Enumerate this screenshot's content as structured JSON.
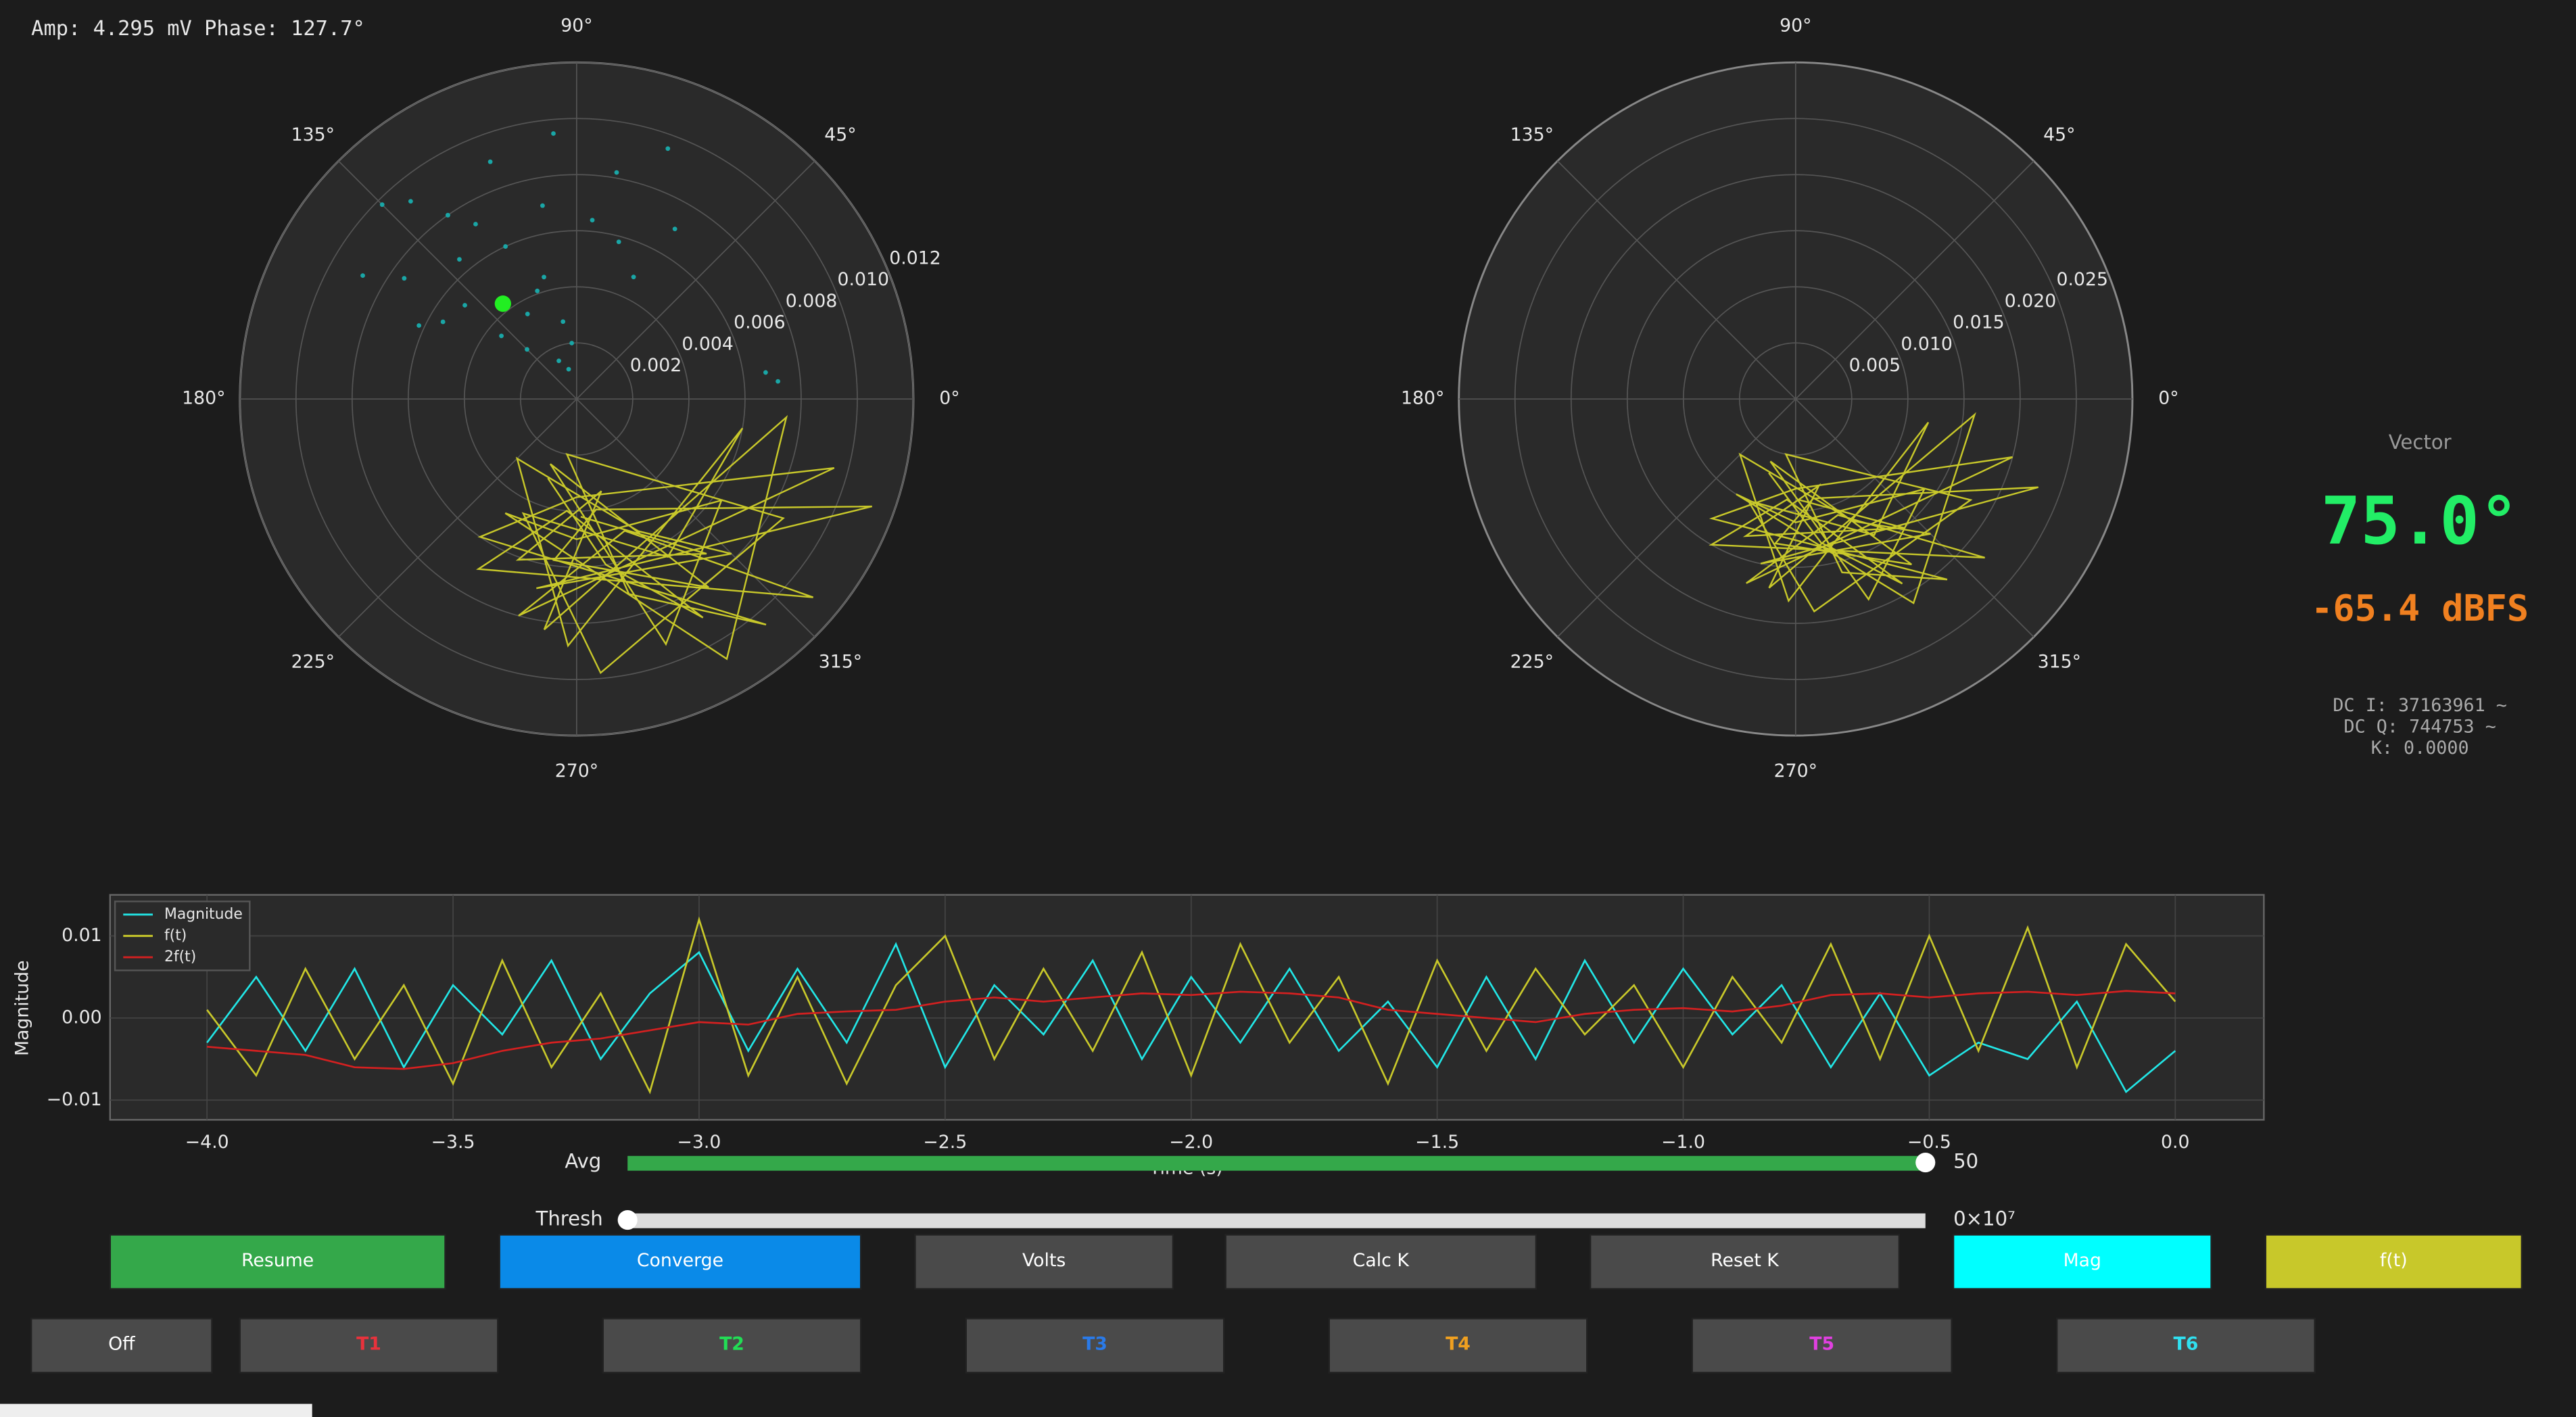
{
  "header": {
    "amp_phase": "Amp: 4.295 mV  Phase: 127.7°"
  },
  "chart_data": [
    {
      "type": "polar",
      "theta_ticks": [
        {
          "value": 0,
          "label": "0°"
        },
        {
          "value": 45,
          "label": "45°"
        },
        {
          "value": 90,
          "label": "90°"
        },
        {
          "value": 135,
          "label": "135°"
        },
        {
          "value": 180,
          "label": "180°"
        },
        {
          "value": 225,
          "label": "225°"
        },
        {
          "value": 270,
          "label": "270°"
        },
        {
          "value": 315,
          "label": "315°"
        }
      ],
      "rlim": [
        0,
        0.012
      ],
      "rticks": [
        0.002,
        0.004,
        0.006,
        0.008,
        {
          "value": 0.01,
          "label": "0.010"
        },
        0.012
      ],
      "scatter": {
        "color": "#1aa6a6",
        "theta": [
          95,
          100,
          105,
          110,
          115,
          120,
          125,
          130,
          135,
          140,
          145,
          150,
          155,
          100,
          110,
          120,
          130,
          140,
          150,
          85,
          80,
          75,
          70,
          65,
          60,
          95,
          115,
          135,
          105,
          125,
          5,
          8
        ],
        "r": [
          0.0095,
          0.007,
          0.0045,
          0.009,
          0.006,
          0.0035,
          0.008,
          0.0065,
          0.0098,
          0.0052,
          0.0075,
          0.0088,
          0.0062,
          0.0028,
          0.0041,
          0.0072,
          0.0092,
          0.0035,
          0.0055,
          0.0064,
          0.0082,
          0.0058,
          0.0095,
          0.0048,
          0.007,
          0.002,
          0.0015,
          0.0025,
          0.0011,
          0.008,
          0.0072,
          0.0068
        ]
      },
      "marker": {
        "color": "#22ee22",
        "theta": 127.7,
        "r": 0.004295
      },
      "trace": {
        "color": "#c8c82a",
        "theta": [
          250,
          280,
          300,
          265,
          240,
          320,
          290,
          255,
          345,
          270,
          235,
          310,
          285,
          260,
          330,
          275,
          245,
          300,
          350,
          268,
          225,
          295,
          315,
          258,
          340,
          280,
          262,
          305,
          248,
          290,
          325,
          270,
          238,
          300,
          355,
          262,
          285,
          250,
          310,
          272
        ],
        "r": [
          0.003,
          0.006,
          0.009,
          0.004,
          0.007,
          0.011,
          0.005,
          0.008,
          0.0095,
          0.0035,
          0.006,
          0.0105,
          0.0072,
          0.002,
          0.0085,
          0.0098,
          0.0045,
          0.0065,
          0.006,
          0.0088,
          0.003,
          0.0052,
          0.0078,
          0.0069,
          0.0112,
          0.004,
          0.0058,
          0.0082,
          0.0025,
          0.0093,
          0.0063,
          0.005,
          0.0048,
          0.0107,
          0.0075,
          0.0083,
          0.0034,
          0.0061,
          0.0072,
          0.0042
        ]
      }
    },
    {
      "type": "polar",
      "theta_ticks": [
        {
          "value": 0,
          "label": "0°"
        },
        {
          "value": 45,
          "label": "45°"
        },
        {
          "value": 90,
          "label": "90°"
        },
        {
          "value": 135,
          "label": "135°"
        },
        {
          "value": 180,
          "label": "180°"
        },
        {
          "value": 225,
          "label": "225°"
        },
        {
          "value": 270,
          "label": "270°"
        },
        {
          "value": 315,
          "label": "315°"
        }
      ],
      "rlim": [
        0,
        0.03
      ],
      "rticks": [
        0.005,
        {
          "value": 0.01,
          "label": "0.010"
        },
        0.015,
        {
          "value": 0.02,
          "label": "0.020"
        },
        0.025
      ],
      "trace": {
        "color": "#c8c82a",
        "theta": [
          250,
          280,
          300,
          265,
          240,
          320,
          290,
          255,
          345,
          270,
          235,
          310,
          285,
          260,
          330,
          275,
          245,
          300,
          350,
          268,
          225,
          295,
          315,
          258,
          340,
          280,
          262,
          305,
          248,
          290,
          325,
          270,
          238,
          300,
          355,
          262,
          285,
          250,
          310,
          272
        ],
        "r": [
          0.007,
          0.013,
          0.019,
          0.009,
          0.015,
          0.022,
          0.011,
          0.017,
          0.02,
          0.008,
          0.013,
          0.021,
          0.016,
          0.005,
          0.018,
          0.019,
          0.01,
          0.014,
          0.012,
          0.018,
          0.007,
          0.012,
          0.017,
          0.015,
          0.023,
          0.009,
          0.013,
          0.018,
          0.006,
          0.019,
          0.014,
          0.011,
          0.01,
          0.021,
          0.016,
          0.017,
          0.008,
          0.013,
          0.015,
          0.009
        ]
      }
    },
    {
      "type": "line",
      "xlabel": "Time (s)",
      "ylabel": "Magnitude",
      "xlim": [
        -4.197,
        0.18
      ],
      "ylim": [
        -0.0124,
        0.015
      ],
      "xticks": [
        {
          "value": -4,
          "label": "−4.0"
        },
        {
          "value": -3.5,
          "label": "−3.5"
        },
        {
          "value": -3,
          "label": "−3.0"
        },
        {
          "value": -2.5,
          "label": "−2.5"
        },
        {
          "value": -2,
          "label": "−2.0"
        },
        {
          "value": -1.5,
          "label": "−1.5"
        },
        {
          "value": -1,
          "label": "−1.0"
        },
        {
          "value": -0.5,
          "label": "−0.5"
        },
        {
          "value": 0,
          "label": "0.0"
        }
      ],
      "yticks": [
        {
          "value": -0.01,
          "label": "−0.01"
        },
        {
          "value": 0,
          "label": "0.00"
        },
        0.01
      ],
      "grid": true,
      "legend": "upper left",
      "x": [
        -4.0,
        -3.9,
        -3.8,
        -3.7,
        -3.6,
        -3.5,
        -3.4,
        -3.3,
        -3.2,
        -3.1,
        -3.0,
        -2.9,
        -2.8,
        -2.7,
        -2.6,
        -2.5,
        -2.4,
        -2.3,
        -2.2,
        -2.1,
        -2.0,
        -1.9,
        -1.8,
        -1.7,
        -1.6,
        -1.5,
        -1.4,
        -1.3,
        -1.2,
        -1.1,
        -1.0,
        -0.9,
        -0.8,
        -0.7,
        -0.6,
        -0.5,
        -0.4,
        -0.3,
        -0.2,
        -0.1,
        0.0
      ],
      "series": [
        {
          "name": "Magnitude",
          "color": "#22e6e6",
          "values": [
            -0.003,
            0.005,
            -0.004,
            0.006,
            -0.006,
            0.004,
            -0.002,
            0.007,
            -0.005,
            0.003,
            0.008,
            -0.004,
            0.006,
            -0.003,
            0.009,
            -0.006,
            0.004,
            -0.002,
            0.007,
            -0.005,
            0.005,
            -0.003,
            0.006,
            -0.004,
            0.002,
            -0.006,
            0.005,
            -0.005,
            0.007,
            -0.003,
            0.006,
            -0.002,
            0.004,
            -0.006,
            0.003,
            -0.007,
            -0.003,
            -0.005,
            0.002,
            -0.009,
            -0.004
          ]
        },
        {
          "name": "f(t)",
          "color": "#c8c82a",
          "values": [
            0.001,
            -0.007,
            0.006,
            -0.005,
            0.004,
            -0.008,
            0.007,
            -0.006,
            0.003,
            -0.009,
            0.012,
            -0.007,
            0.005,
            -0.008,
            0.004,
            0.01,
            -0.005,
            0.006,
            -0.004,
            0.008,
            -0.007,
            0.009,
            -0.003,
            0.005,
            -0.008,
            0.007,
            -0.004,
            0.006,
            -0.002,
            0.004,
            -0.006,
            0.005,
            -0.003,
            0.009,
            -0.005,
            0.01,
            -0.004,
            0.011,
            -0.006,
            0.009,
            0.002
          ]
        },
        {
          "name": "2f(t)",
          "color": "#d42020",
          "values": [
            -0.0035,
            -0.004,
            -0.0045,
            -0.006,
            -0.0062,
            -0.0055,
            -0.004,
            -0.003,
            -0.0025,
            -0.0015,
            -0.0005,
            -0.0008,
            0.0005,
            0.0008,
            0.001,
            0.002,
            0.0025,
            0.002,
            0.0025,
            0.003,
            0.0028,
            0.0032,
            0.003,
            0.0025,
            0.001,
            0.0005,
            0,
            -0.0005,
            0.0005,
            0.001,
            0.0012,
            0.0008,
            0.0015,
            0.0028,
            0.003,
            0.0025,
            0.003,
            0.0032,
            0.0028,
            0.0033,
            0.003
          ]
        }
      ]
    }
  ],
  "readout": {
    "title": "Vector",
    "angle": "75.0°",
    "level": "-65.4 dBFS",
    "dc_i": "DC I: 37163961 ~",
    "dc_q": "DC Q: 744753 ~",
    "k": "K: 0.0000"
  },
  "controls": {
    "avg": {
      "label": "Avg",
      "value": 50
    },
    "thresh": {
      "label": "Thresh",
      "value_label": "0×10⁷"
    },
    "row1": [
      "Resume",
      "Converge",
      "Volts",
      "Calc K",
      "Reset K",
      "Mag",
      "f(t)"
    ],
    "row2": [
      "Off",
      "T1",
      "T2",
      "T3",
      "T4",
      "T5",
      "T6"
    ]
  }
}
